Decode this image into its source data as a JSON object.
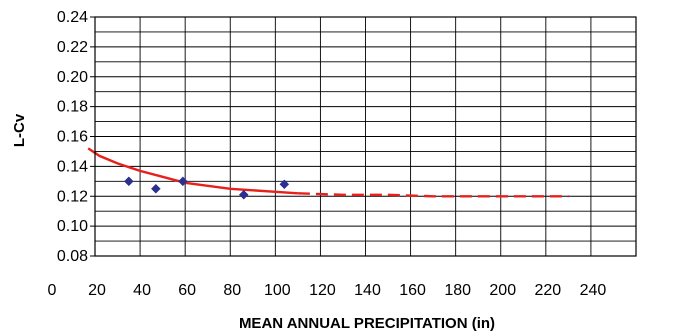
{
  "chart_data": {
    "type": "scatter",
    "title": "",
    "xlabel": "MEAN ANNUAL PRECIPITATION (in)",
    "ylabel": "L-Cv",
    "xlim": [
      0,
      240
    ],
    "ylim": [
      0.08,
      0.24
    ],
    "x_ticks": [
      "0",
      "20",
      "40",
      "60",
      "80",
      "100",
      "120",
      "140",
      "160",
      "180",
      "200",
      "220",
      "240"
    ],
    "y_ticks": [
      "0.08",
      "0.10",
      "0.12",
      "0.14",
      "0.16",
      "0.18",
      "0.20",
      "0.22",
      "0.24"
    ],
    "grid": true,
    "legend": "none",
    "series": [
      {
        "kind": "points",
        "marker": "diamond",
        "color": "#2b2f8f",
        "points": [
          {
            "x": 35,
            "y": 0.13
          },
          {
            "x": 47,
            "y": 0.125
          },
          {
            "x": 59,
            "y": 0.13
          },
          {
            "x": 86,
            "y": 0.121
          },
          {
            "x": 104,
            "y": 0.128
          }
        ]
      },
      {
        "kind": "line",
        "style": "solid",
        "color": "#e8201c",
        "points": [
          {
            "x": 17,
            "y": 0.152
          },
          {
            "x": 22,
            "y": 0.147
          },
          {
            "x": 30,
            "y": 0.142
          },
          {
            "x": 40,
            "y": 0.137
          },
          {
            "x": 50,
            "y": 0.133
          },
          {
            "x": 60,
            "y": 0.129
          },
          {
            "x": 70,
            "y": 0.127
          },
          {
            "x": 80,
            "y": 0.125
          },
          {
            "x": 90,
            "y": 0.124
          },
          {
            "x": 100,
            "y": 0.123
          },
          {
            "x": 110,
            "y": 0.122
          }
        ]
      },
      {
        "kind": "line",
        "style": "dashed",
        "color": "#e8201c",
        "points": [
          {
            "x": 110,
            "y": 0.122
          },
          {
            "x": 130,
            "y": 0.121
          },
          {
            "x": 150,
            "y": 0.121
          },
          {
            "x": 170,
            "y": 0.12
          },
          {
            "x": 200,
            "y": 0.12
          },
          {
            "x": 230,
            "y": 0.12
          }
        ]
      }
    ]
  }
}
